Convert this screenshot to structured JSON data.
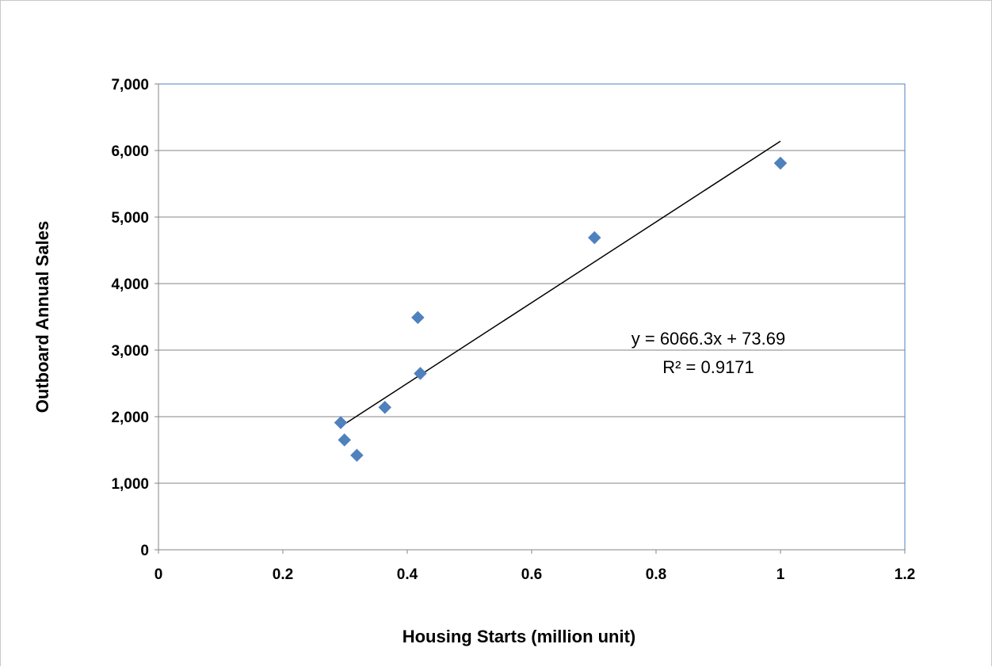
{
  "chart_data": {
    "type": "scatter",
    "xlabel": "Housing Starts (million unit)",
    "ylabel": "Outboard Annual Sales",
    "xlim": [
      0,
      1.2
    ],
    "ylim": [
      0,
      7000
    ],
    "x_ticks": [
      0,
      0.2,
      0.4,
      0.6,
      0.8,
      1.0,
      1.2
    ],
    "x_tick_labels": [
      "0",
      "0.2",
      "0.4",
      "0.6",
      "0.8",
      "1",
      "1.2"
    ],
    "y_ticks": [
      0,
      1000,
      2000,
      3000,
      4000,
      5000,
      6000,
      7000
    ],
    "y_tick_labels": [
      "0",
      "1,000",
      "2,000",
      "3,000",
      "4,000",
      "5,000",
      "6,000",
      "7,000"
    ],
    "grid": "horizontal",
    "legend": "none",
    "marker": "diamond",
    "series": [
      {
        "points": [
          {
            "x": 0.293,
            "y": 1910
          },
          {
            "x": 0.299,
            "y": 1650
          },
          {
            "x": 0.319,
            "y": 1420
          },
          {
            "x": 0.364,
            "y": 2140
          },
          {
            "x": 0.417,
            "y": 3490
          },
          {
            "x": 0.421,
            "y": 2650
          },
          {
            "x": 0.701,
            "y": 4690
          },
          {
            "x": 1.0,
            "y": 5810
          }
        ],
        "color": "#4f81bd"
      }
    ],
    "trendline": {
      "type": "linear",
      "slope": 6066.3,
      "intercept": 73.69,
      "x_range": [
        0.293,
        1.0
      ],
      "color": "#000000"
    },
    "annotations": {
      "equation": "y = 6066.3x + 73.69",
      "r_squared": "R² = 0.9171"
    },
    "colors": {
      "gridline": "#868686",
      "plot_border": "#4f81bd",
      "axis": "#868686"
    }
  }
}
